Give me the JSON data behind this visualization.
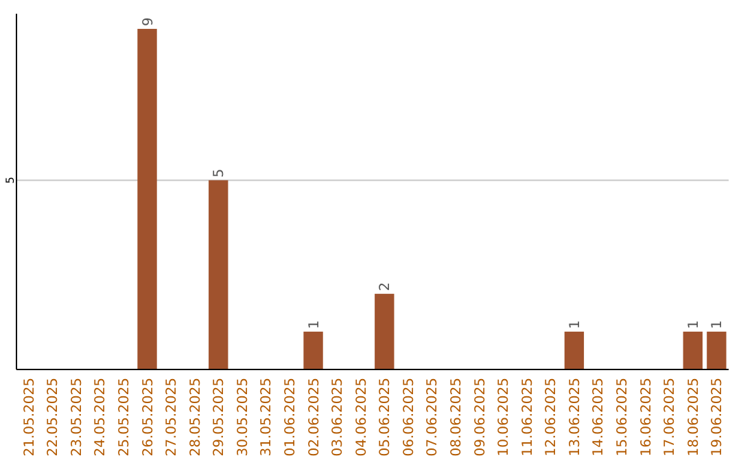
{
  "chart_data": {
    "type": "bar",
    "categories": [
      "21.05.2025",
      "22.05.2025",
      "23.05.2025",
      "24.05.2025",
      "25.05.2025",
      "26.05.2025",
      "27.05.2025",
      "28.05.2025",
      "29.05.2025",
      "30.05.2025",
      "31.05.2025",
      "01.06.2025",
      "02.06.2025",
      "03.06.2025",
      "04.06.2025",
      "05.06.2025",
      "06.06.2025",
      "07.06.2025",
      "08.06.2025",
      "09.06.2025",
      "10.06.2025",
      "11.06.2025",
      "12.06.2025",
      "13.06.2025",
      "14.06.2025",
      "15.06.2025",
      "16.06.2025",
      "17.06.2025",
      "18.06.2025",
      "19.06.2025"
    ],
    "values": [
      0,
      0,
      0,
      0,
      0,
      9,
      0,
      0,
      5,
      0,
      0,
      0,
      1,
      0,
      0,
      2,
      0,
      0,
      0,
      0,
      0,
      0,
      0,
      1,
      0,
      0,
      0,
      0,
      1,
      1
    ],
    "value_labels": [
      null,
      null,
      null,
      null,
      null,
      "9",
      null,
      null,
      "5",
      null,
      null,
      null,
      "1",
      null,
      null,
      "2",
      null,
      null,
      null,
      null,
      null,
      null,
      null,
      "1",
      null,
      null,
      null,
      null,
      "1",
      "1"
    ],
    "color": "#a0522d",
    "ylim": [
      0,
      9.4
    ],
    "yticks": [
      5
    ],
    "grid": "y"
  }
}
